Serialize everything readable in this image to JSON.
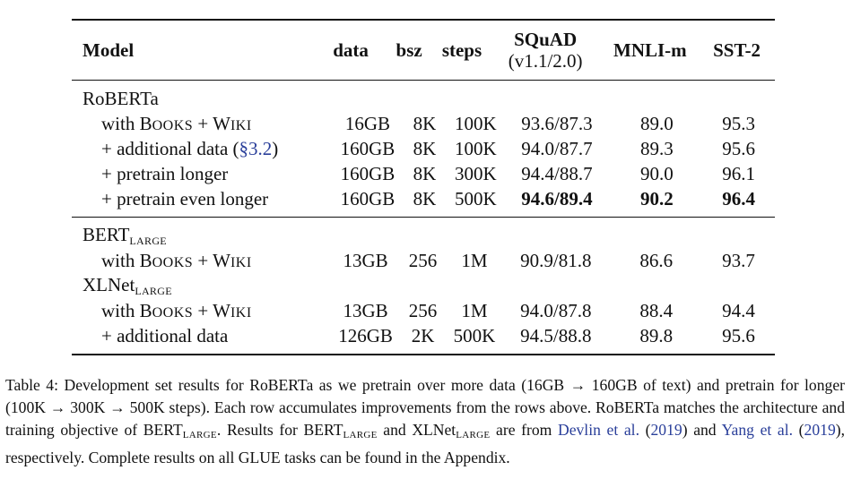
{
  "table": {
    "headers": {
      "model": "Model",
      "data": "data",
      "bsz": "bsz",
      "steps": "steps",
      "squad": "SQuAD",
      "squad_sub": "(v1.1/2.0)",
      "mnli": "MNLI-m",
      "sst": "SST-2"
    },
    "roberta": {
      "group": "RoBERTa",
      "rows": [
        {
          "pre": "with B",
          "sc1": "OOKS",
          "mid": " + W",
          "sc2": "IKI",
          "data": "16GB",
          "bsz": "8K",
          "steps": "100K",
          "squad": "93.6/87.3",
          "mnli": "89.0",
          "sst": "95.3"
        },
        {
          "label": "+ additional data (",
          "ref": "§3.2",
          "close": ")",
          "data": "160GB",
          "bsz": "8K",
          "steps": "100K",
          "squad": "94.0/87.7",
          "mnli": "89.3",
          "sst": "95.6"
        },
        {
          "label": "+ pretrain longer",
          "data": "160GB",
          "bsz": "8K",
          "steps": "300K",
          "squad": "94.4/88.7",
          "mnli": "90.0",
          "sst": "96.1"
        },
        {
          "label": "+ pretrain even longer",
          "data": "160GB",
          "bsz": "8K",
          "steps": "500K",
          "squad": "94.6/89.4",
          "mnli": "90.2",
          "sst": "96.4"
        }
      ]
    },
    "bert": {
      "group": "BERT",
      "group_sub": "LARGE",
      "rows": [
        {
          "pre": "with B",
          "sc1": "OOKS",
          "mid": " + W",
          "sc2": "IKI",
          "data": "13GB",
          "bsz": "256",
          "steps": "1M",
          "squad": "90.9/81.8",
          "mnli": "86.6",
          "sst": "93.7"
        }
      ]
    },
    "xlnet": {
      "group": "XLNet",
      "group_sub": "LARGE",
      "rows": [
        {
          "pre": "with B",
          "sc1": "OOKS",
          "mid": " + W",
          "sc2": "IKI",
          "data": "13GB",
          "bsz": "256",
          "steps": "1M",
          "squad": "94.0/87.8",
          "mnli": "88.4",
          "sst": "94.4"
        },
        {
          "label": "+ additional data",
          "data": "126GB",
          "bsz": "2K",
          "steps": "500K",
          "squad": "94.5/88.8",
          "mnli": "89.8",
          "sst": "95.6"
        }
      ]
    }
  },
  "caption": {
    "p1": "Table 4: Development set results for RoBERTa as we pretrain over more data (16GB → 160GB of text) and pretrain for longer (100K → 300K → 500K steps). Each row accumulates improvements from the rows above. RoBERTa matches the architecture and training objective of BERT",
    "sub1": "LARGE",
    "p2": ". Results for BERT",
    "sub2": "LARGE",
    "p3": " and XLNet",
    "sub3": "LARGE",
    "p4": " are from ",
    "ref1_name": "Devlin et al.",
    "ref1_open": " (",
    "ref1_year": "2019",
    "ref1_close": ") and ",
    "ref2_name": "Yang et al.",
    "ref2_open": " (",
    "ref2_year": "2019",
    "p5": "), respectively. Complete results on all GLUE tasks can be found in the Appendix."
  },
  "colors": {
    "text": "#111111",
    "link": "#2a3f9a",
    "rule": "#111111"
  }
}
